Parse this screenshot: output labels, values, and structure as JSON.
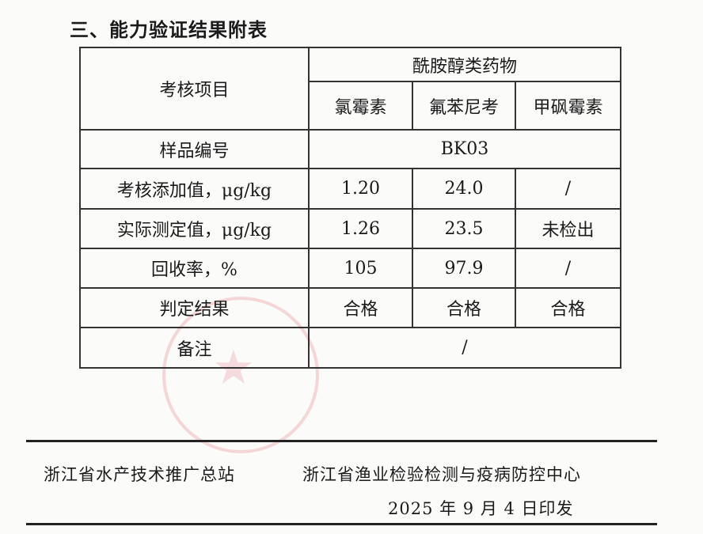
{
  "title": "三、能力验证结果附表",
  "table": {
    "item_header": "考核项目",
    "group_header": "酰胺醇类药物",
    "drugs": [
      "氯霉素",
      "氟苯尼考",
      "甲砜霉素"
    ],
    "sample_label": "样品编号",
    "sample_id": "BK03",
    "rows": [
      {
        "label": "考核添加值，μg/kg",
        "values": [
          "1.20",
          "24.0",
          "/"
        ]
      },
      {
        "label": "实际测定值，μg/kg",
        "values": [
          "1.26",
          "23.5",
          "未检出"
        ]
      },
      {
        "label": "回收率，%",
        "values": [
          "105",
          "97.9",
          "/"
        ]
      },
      {
        "label": "判定结果",
        "values": [
          "合格",
          "合格",
          "合格"
        ]
      }
    ],
    "remark_label": "备注",
    "remark_value": "/"
  },
  "footer": {
    "issuer1": "浙江省水产技术推广总站",
    "issuer2": "浙江省渔业检验检测与疫病防控中心",
    "date": "2025 年 9 月 4 日印发"
  },
  "stamp_color": "#dc505a"
}
